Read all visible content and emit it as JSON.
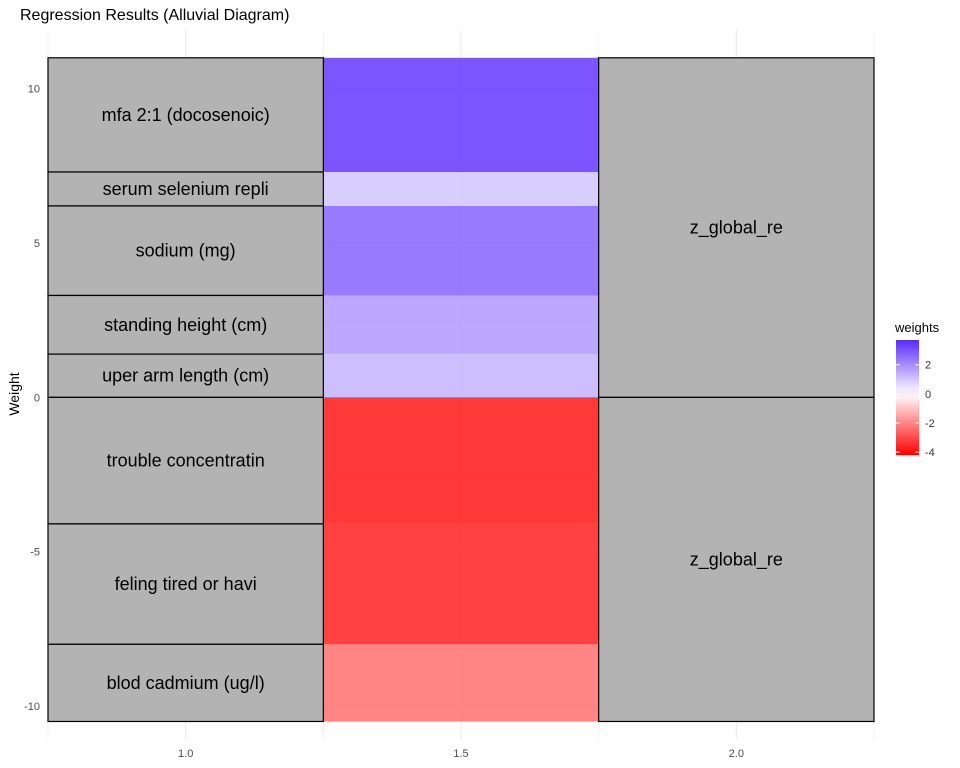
{
  "chart_data": {
    "type": "alluvial",
    "title": "Regression Results (Alluvial Diagram)",
    "xlabel": "",
    "ylabel": "Weight",
    "xlim": [
      0.75,
      2.25
    ],
    "ylim": [
      -11.1,
      11.9
    ],
    "x_ticks": [
      1.0,
      1.5,
      2.0
    ],
    "x_tick_labels": [
      "1.0",
      "1.5",
      "2.0"
    ],
    "y_ticks": [
      -10,
      -5,
      0,
      5,
      10
    ],
    "y_tick_labels": [
      "-10",
      "-5",
      "0",
      "5",
      "10"
    ],
    "grid": true,
    "left_nodes": [
      {
        "label": "mfa 2:1 (docosenoic)",
        "y0": 7.3,
        "y1": 11.0,
        "weight": 3.7
      },
      {
        "label": "serum selenium repli",
        "y0": 6.2,
        "y1": 7.3,
        "weight": 1.1
      },
      {
        "label": "sodium (mg)",
        "y0": 3.3,
        "y1": 6.2,
        "weight": 2.9
      },
      {
        "label": "standing height (cm)",
        "y0": 1.4,
        "y1": 3.3,
        "weight": 1.9
      },
      {
        "label": "uper arm length (cm)",
        "y0": 0.0,
        "y1": 1.4,
        "weight": 1.4
      },
      {
        "label": "trouble concentratin",
        "y0": -4.1,
        "y1": 0.0,
        "weight": -4.1
      },
      {
        "label": "feling tired or havi",
        "y0": -8.0,
        "y1": -4.1,
        "weight": -3.9
      },
      {
        "label": "blod cadmium (ug/l)",
        "y0": -10.5,
        "y1": -8.0,
        "weight": -2.5
      }
    ],
    "right_nodes": [
      {
        "label": "z_global_re",
        "y0": 0.0,
        "y1": 11.0
      },
      {
        "label": "z_global_re",
        "y0": -10.5,
        "y1": 0.0
      }
    ],
    "legend": {
      "title": "weights",
      "placement": "right",
      "ticks": [
        2,
        0,
        -2,
        -4
      ],
      "tick_labels": [
        "2",
        "0",
        "-2",
        "-4"
      ],
      "range": [
        -4.2,
        3.7
      ]
    },
    "colors": {
      "positive": "#5b2bff",
      "neutral": "#ffffff",
      "negative": "#ff0000",
      "node_fill": "#b3b3b3",
      "grid": "#ebebeb"
    }
  }
}
